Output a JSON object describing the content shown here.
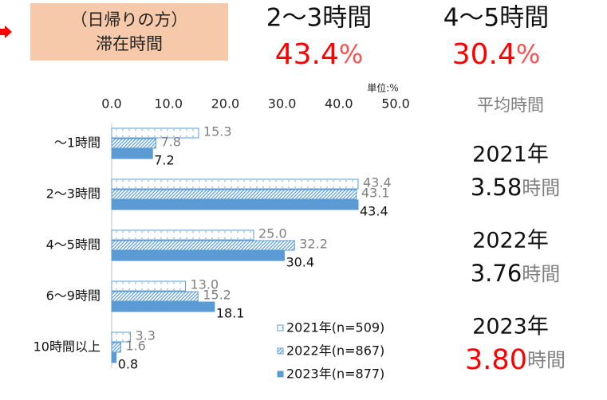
{
  "chart_data": {
    "type": "hbar",
    "header": {
      "lines": [
        "（日帰りの方）",
        "滞在時間"
      ],
      "fill": "#f6c9aa",
      "arrow_color": "#ff0000"
    },
    "highlights": [
      {
        "label": "2～3時間",
        "value": "43.4",
        "unit": "%"
      },
      {
        "label": "4～5時間",
        "value": "30.4",
        "unit": "%"
      }
    ],
    "unit_label": "単位:%",
    "categories": [
      "～1時間",
      "2～3時間",
      "4～5時間",
      "6～9時間",
      "10時間以上"
    ],
    "series": [
      {
        "name": "2021年(n=509)",
        "color": "#5b9bd5",
        "fill_style": "dots",
        "values": [
          15.3,
          43.4,
          25.0,
          13.0,
          3.3
        ],
        "value_labels": [
          "15.3",
          "43.4",
          "25.0",
          "13.0",
          "3.3"
        ]
      },
      {
        "name": "2022年(n=867)",
        "color": "#5b9bd5",
        "fill_style": "hatch",
        "values": [
          7.8,
          43.1,
          32.2,
          15.2,
          1.6
        ],
        "value_labels": [
          "7.8",
          "43.1",
          "32.2",
          "15.2",
          "1.6"
        ]
      },
      {
        "name": "2023年(n=877)",
        "color": "#5b9bd5",
        "fill_style": "solid",
        "values": [
          7.2,
          43.4,
          30.4,
          18.1,
          0.8
        ],
        "value_labels": [
          "7.2",
          "43.4",
          "30.4",
          "18.1",
          "0.8"
        ]
      }
    ],
    "xlim": [
      0,
      50
    ],
    "xticks": [
      {
        "value": 0,
        "label": "0.0"
      },
      {
        "value": 10,
        "label": "10.0"
      },
      {
        "value": 20,
        "label": "20.0"
      },
      {
        "value": 30,
        "label": "30.0"
      },
      {
        "value": 40,
        "label": "40.0"
      },
      {
        "value": 50,
        "label": "50.0"
      }
    ],
    "averages": {
      "title": "平均時間",
      "items": [
        {
          "year": "2021年",
          "value": "3.58",
          "unit": "時間"
        },
        {
          "year": "2022年",
          "value": "3.76",
          "unit": "時間"
        },
        {
          "year": "2023年",
          "value": "3.80",
          "unit": "時間",
          "highlight": true
        }
      ]
    }
  }
}
